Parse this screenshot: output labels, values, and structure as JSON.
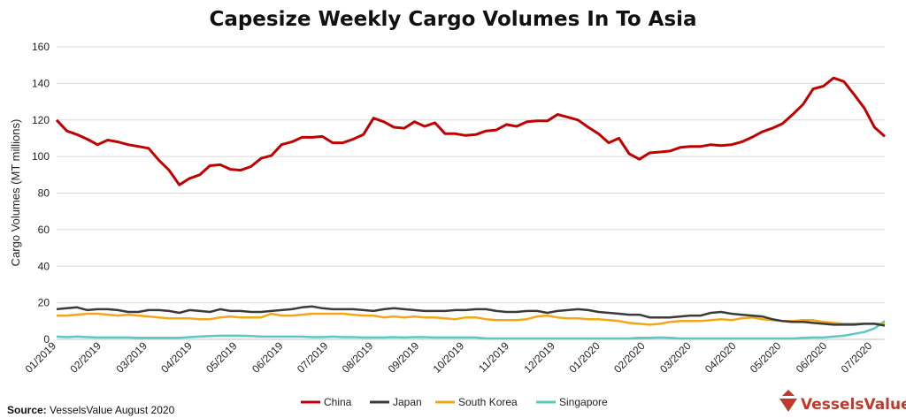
{
  "chart_data": {
    "type": "line",
    "title": "Capesize Weekly Cargo Volumes In To Asia",
    "ylabel": "Cargo Volumes (MT millions)",
    "xlabel": "",
    "ylim": [
      0,
      160
    ],
    "yticks": [
      0,
      20,
      40,
      60,
      80,
      100,
      120,
      140,
      160
    ],
    "xtick_labels": [
      "01/2019",
      "02/2019",
      "03/2019",
      "04/2019",
      "05/2019",
      "06/2019",
      "07/2019",
      "08/2019",
      "09/2019",
      "10/2019",
      "11/2019",
      "12/2019",
      "01/2020",
      "02/2020",
      "03/2020",
      "04/2020",
      "05/2020",
      "06/2020",
      "07/2020"
    ],
    "xtick_weeks": [
      0,
      4.4,
      8.9,
      13.3,
      17.7,
      22.2,
      26.6,
      31.0,
      35.5,
      39.9,
      44.3,
      48.8,
      53.2,
      57.6,
      62.1,
      66.5,
      70.9,
      75.4,
      79.8
    ],
    "grid": "horizontal",
    "legend_position": "bottom",
    "colors": {
      "china": "#c00000",
      "japan": "#3a3a3a",
      "south_korea": "#f0a818",
      "singapore": "#5bc8c2",
      "grid": "#d9d9d9",
      "logo": "#c0392b"
    },
    "series": [
      {
        "name": "China",
        "color": "#c00000",
        "values": [
          120,
          114,
          112,
          109.5,
          106.5,
          109,
          108,
          106.5,
          105.5,
          104.5,
          98,
          92.5,
          84.5,
          88,
          90,
          95,
          95.5,
          93,
          92.5,
          94.5,
          99,
          100.5,
          106.5,
          108,
          110.5,
          110.5,
          111,
          107.5,
          107.5,
          109.5,
          112,
          121,
          119,
          116,
          115.5,
          119,
          116.5,
          118.5,
          112.5,
          112.5,
          111.5,
          112,
          114,
          114.5,
          117.5,
          116.5,
          119,
          119.5,
          119.5,
          123,
          121.5,
          120,
          116,
          112.5,
          107.5,
          110,
          101.5,
          98.5,
          102,
          102.5,
          103,
          105,
          105.5,
          105.5,
          106.5,
          106,
          106.5,
          108,
          110.5,
          113.5,
          115.5,
          118,
          123,
          128.5,
          137,
          138.5,
          143,
          141,
          134,
          126.5,
          116,
          111
        ]
      },
      {
        "name": "Japan",
        "color": "#3a3a3a",
        "values": [
          16.5,
          17,
          17.5,
          16,
          16.5,
          16.5,
          16,
          15,
          15,
          16,
          16,
          15.5,
          14.5,
          16,
          15.5,
          15,
          16.5,
          15.5,
          15.5,
          15,
          15,
          15.5,
          16,
          16.5,
          17.5,
          18,
          17,
          16.5,
          16.5,
          16.5,
          16,
          15.5,
          16.5,
          17,
          16.5,
          16,
          15.5,
          15.5,
          15.5,
          16,
          16,
          16.5,
          16.5,
          15.5,
          15,
          15,
          15.5,
          15.5,
          14.5,
          15.5,
          16,
          16.5,
          16,
          15,
          14.5,
          14,
          13.5,
          13.5,
          12,
          12,
          12,
          12.5,
          13,
          13,
          14.5,
          15,
          14,
          13.5,
          13,
          12.5,
          11,
          10,
          9.5,
          9.5,
          9,
          8.5,
          8,
          8,
          8,
          8.5,
          8.5,
          7.5
        ]
      },
      {
        "name": "South Korea",
        "color": "#f0a818",
        "values": [
          13,
          13,
          13.5,
          14,
          14,
          13.5,
          13,
          13.5,
          13,
          12.5,
          12,
          11.5,
          11.5,
          11.5,
          11,
          11,
          12,
          12.5,
          12,
          12,
          12,
          14,
          13,
          13,
          13.5,
          14,
          14,
          14,
          14,
          13.5,
          13,
          13,
          12,
          12.5,
          12,
          12.5,
          12,
          12,
          11.5,
          11,
          12,
          12,
          11,
          10.5,
          10.5,
          10.5,
          11,
          12.5,
          13,
          12,
          11.5,
          11.5,
          11,
          11,
          10.5,
          10,
          9,
          8.5,
          8,
          8.5,
          9.5,
          10,
          10,
          10,
          10.5,
          11,
          10.5,
          11.5,
          12,
          11,
          10.5,
          10,
          10,
          10.5,
          10.5,
          9.5,
          9,
          8.5,
          8.5,
          8.5,
          8.5,
          8.5
        ]
      },
      {
        "name": "Singapore",
        "color": "#5bc8c2",
        "values": [
          1.5,
          1.2,
          1.5,
          1.2,
          1,
          1,
          1,
          1,
          0.8,
          0.8,
          0.8,
          0.8,
          0.8,
          1.2,
          1.5,
          1.8,
          2,
          2,
          2,
          1.8,
          1.5,
          1.5,
          1.5,
          1.5,
          1.5,
          1.2,
          1.2,
          1.5,
          1.2,
          1.2,
          1,
          1,
          1,
          1.2,
          1,
          1.2,
          1.2,
          1,
          1,
          1,
          1,
          1,
          0.5,
          0.5,
          0.5,
          0.5,
          0.5,
          0.5,
          0.5,
          0.5,
          0.5,
          0.5,
          0.5,
          0.5,
          0.5,
          0.5,
          0.5,
          0.8,
          0.8,
          1,
          0.8,
          0.5,
          0.5,
          0.5,
          0.5,
          0.5,
          0.5,
          0.5,
          0.5,
          0.5,
          0.5,
          0.5,
          0.5,
          0.8,
          1,
          1,
          1.5,
          2,
          3,
          4,
          6,
          10
        ]
      }
    ]
  },
  "source": {
    "label": "Source:",
    "text": "VesselsValue August 2020"
  },
  "logo": {
    "text": "VesselsValue",
    "icon": "vesselsvalue-logo-icon"
  }
}
